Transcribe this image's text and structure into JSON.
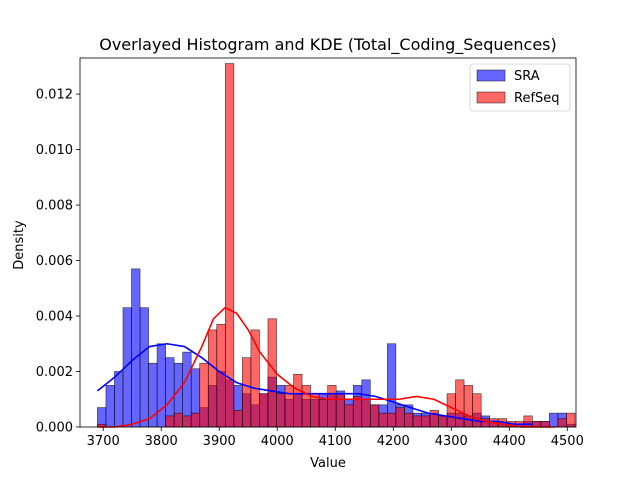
{
  "chart_data": {
    "type": "bar",
    "title": "Overlayed Histogram and KDE (Total_Coding_Sequences)",
    "xlabel": "Value",
    "ylabel": "Density",
    "xlim": [
      3660,
      4515
    ],
    "ylim": [
      0,
      0.0133
    ],
    "xticks": [
      3700,
      3800,
      3900,
      4000,
      4100,
      4200,
      4300,
      4400,
      4500
    ],
    "yticks": [
      0.0,
      0.002,
      0.004,
      0.006,
      0.008,
      0.01,
      0.012
    ],
    "ytick_labels": [
      "0.000",
      "0.002",
      "0.004",
      "0.006",
      "0.008",
      "0.010",
      "0.012"
    ],
    "legend_position": "top-right",
    "series": [
      {
        "name": "SRA",
        "color": "#0000ff",
        "bin_start": 3690,
        "bin_width": 14.7,
        "values": [
          0.0007,
          0.0015,
          0.002,
          0.0043,
          0.0057,
          0.0043,
          0.0023,
          0.003,
          0.0025,
          0.0023,
          0.0027,
          0.0021,
          0.0007,
          0.0015,
          0.002,
          0.0017,
          0.0015,
          0.0012,
          0.0008,
          0.0012,
          0.0018,
          0.0015,
          0.001,
          0.0012,
          0.001,
          0.001,
          0.0012,
          0.0012,
          0.0013,
          0.001,
          0.0015,
          0.0017,
          0.0008,
          0.0008,
          0.003,
          0.0008,
          0.0008,
          0.0005,
          0.0005,
          0.0005,
          0.0004,
          0.0005,
          0.0005,
          0.0004,
          0.0005,
          0.0004,
          0.0002,
          0.0001,
          0.0001,
          0.0001,
          0.0002,
          0.0002,
          0.0002,
          0.0005,
          0.0005,
          0.0001
        ]
      },
      {
        "name": "RefSeq",
        "color": "#ff0000",
        "bin_start": 3690,
        "bin_width": 14.7,
        "values": [
          0.0001,
          0.0,
          0.0,
          0.0,
          0.0,
          0.0,
          0.0,
          0.0,
          0.0004,
          0.0005,
          0.0004,
          0.0005,
          0.0023,
          0.0035,
          0.0037,
          0.0131,
          0.0006,
          0.0025,
          0.0035,
          0.0012,
          0.0039,
          0.0012,
          0.0015,
          0.0019,
          0.0015,
          0.0012,
          0.001,
          0.0015,
          0.0012,
          0.0008,
          0.0011,
          0.001,
          0.0008,
          0.0005,
          0.0005,
          0.0007,
          0.0005,
          0.0004,
          0.0004,
          0.0006,
          0.0004,
          0.0012,
          0.0017,
          0.0015,
          0.0012,
          0.0003,
          0.0003,
          0.0003,
          0.0002,
          0.0002,
          0.0004,
          0.0002,
          0.0002,
          0.0,
          0.0003,
          0.0005
        ]
      }
    ],
    "kde": [
      {
        "name": "SRA",
        "color": "#0000ff",
        "x": [
          3690,
          3720,
          3750,
          3780,
          3810,
          3840,
          3870,
          3900,
          3930,
          3960,
          3990,
          4020,
          4050,
          4080,
          4110,
          4140,
          4170,
          4200,
          4230,
          4260,
          4290,
          4320,
          4350,
          4380,
          4410,
          4440
        ],
        "y": [
          0.0013,
          0.0018,
          0.0024,
          0.0029,
          0.003,
          0.0029,
          0.0025,
          0.002,
          0.0016,
          0.0014,
          0.0013,
          0.0012,
          0.0012,
          0.0012,
          0.0012,
          0.0012,
          0.0011,
          0.0009,
          0.0007,
          0.0005,
          0.0004,
          0.0003,
          0.0002,
          0.0002,
          0.0001,
          0.0001
        ]
      },
      {
        "name": "RefSeq",
        "color": "#ff0000",
        "x": [
          3690,
          3720,
          3750,
          3780,
          3810,
          3840,
          3870,
          3890,
          3910,
          3930,
          3950,
          3970,
          4000,
          4030,
          4060,
          4090,
          4120,
          4150,
          4180,
          4210,
          4240,
          4270,
          4300,
          4330,
          4360,
          4390,
          4420,
          4450,
          4480
        ],
        "y": [
          0.0,
          0.0,
          0.0001,
          0.0003,
          0.0008,
          0.0016,
          0.0029,
          0.0039,
          0.0043,
          0.0041,
          0.0035,
          0.0027,
          0.0019,
          0.0014,
          0.0011,
          0.001,
          0.001,
          0.001,
          0.001,
          0.001,
          0.0011,
          0.001,
          0.0007,
          0.0004,
          0.0002,
          0.0001,
          0.0,
          0.0,
          0.0
        ]
      }
    ]
  }
}
